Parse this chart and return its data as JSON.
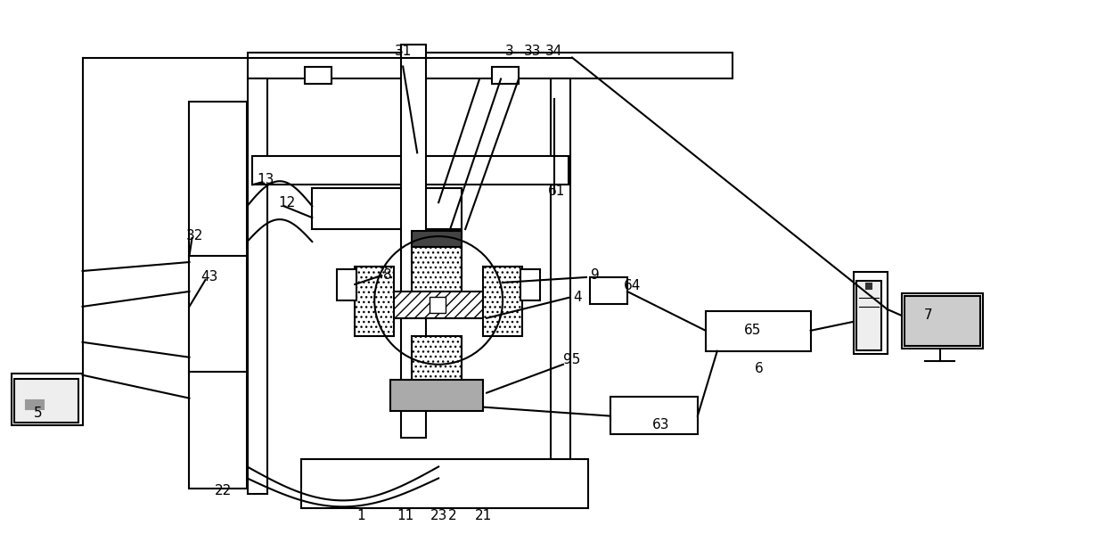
{
  "bg": "#ffffff",
  "lc": "#000000",
  "lw": 1.5,
  "figw": 12.4,
  "figh": 5.99,
  "dpi": 100,
  "labels": [
    [
      "1",
      4.05,
      0.2
    ],
    [
      "2",
      5.08,
      0.2
    ],
    [
      "3",
      5.72,
      5.42
    ],
    [
      "4",
      6.48,
      2.65
    ],
    [
      "5",
      0.42,
      1.35
    ],
    [
      "6",
      8.52,
      1.85
    ],
    [
      "7",
      10.42,
      2.45
    ],
    [
      "8",
      4.35,
      2.9
    ],
    [
      "9",
      6.68,
      2.9
    ],
    [
      "11",
      4.55,
      0.2
    ],
    [
      "12",
      3.22,
      3.72
    ],
    [
      "13",
      2.98,
      3.98
    ],
    [
      "21",
      5.42,
      0.2
    ],
    [
      "22",
      2.5,
      0.48
    ],
    [
      "23",
      4.92,
      0.2
    ],
    [
      "31",
      4.52,
      5.42
    ],
    [
      "32",
      2.18,
      3.35
    ],
    [
      "33",
      5.98,
      5.42
    ],
    [
      "34",
      6.22,
      5.42
    ],
    [
      "43",
      2.35,
      2.88
    ],
    [
      "61",
      6.25,
      3.85
    ],
    [
      "63",
      7.42,
      1.22
    ],
    [
      "64",
      7.1,
      2.78
    ],
    [
      "65",
      8.45,
      2.28
    ],
    [
      "95",
      6.42,
      1.95
    ]
  ]
}
